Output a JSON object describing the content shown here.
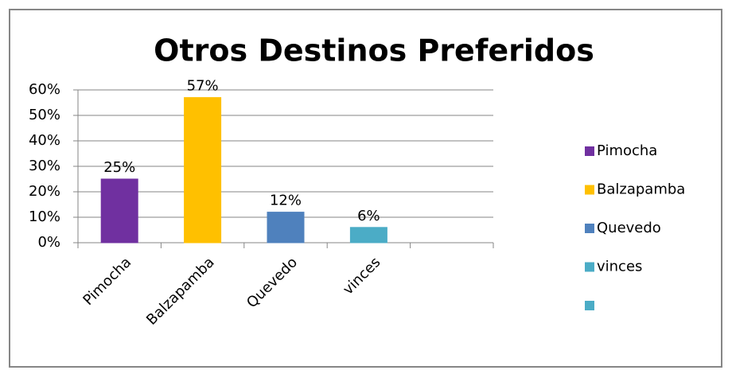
{
  "chart_data": {
    "type": "bar",
    "title": "Otros Destinos Preferidos",
    "categories": [
      "Pimocha",
      "Balzapamba",
      "Quevedo",
      "vinces",
      null
    ],
    "values": [
      25,
      57,
      12,
      6,
      null
    ],
    "value_labels": [
      "25%",
      "57%",
      "12%",
      "6%",
      null
    ],
    "colors": [
      "#7030a0",
      "#ffc000",
      "#4f81bd",
      "#4bacc6",
      "#4bacc6"
    ],
    "ylim": [
      0,
      60
    ],
    "yticks": [
      {
        "value": 0,
        "label": "0%"
      },
      {
        "value": 10,
        "label": "10%"
      },
      {
        "value": 20,
        "label": "20%"
      },
      {
        "value": 30,
        "label": "30%"
      },
      {
        "value": 40,
        "label": "40%"
      },
      {
        "value": 50,
        "label": "50%"
      },
      {
        "value": 60,
        "label": "60%"
      }
    ],
    "grid": true,
    "legend": "right"
  }
}
